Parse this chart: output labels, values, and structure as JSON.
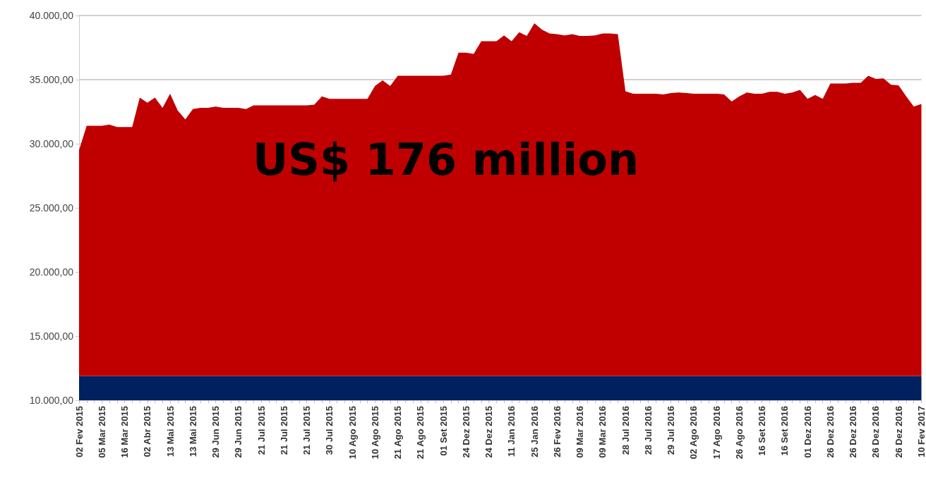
{
  "chart_data": {
    "type": "area",
    "stacked": true,
    "categories": [
      "02 Fev 2015",
      null,
      null,
      "05 Mar 2015",
      null,
      null,
      "16 Mar 2015",
      null,
      null,
      "02 Abr 2015",
      null,
      null,
      "13 Mai 2015",
      null,
      null,
      "13 Mai 2015",
      null,
      null,
      "29 Jun 2015",
      null,
      null,
      "29 Jun 2015",
      null,
      null,
      "21 Jul 2015",
      null,
      null,
      "21 Jul 2015",
      null,
      null,
      "21 Jul 2015",
      null,
      null,
      "30 Jul 2015",
      null,
      null,
      "10 Ago 2015",
      null,
      null,
      "10 Ago 2015",
      null,
      null,
      "21 Ago 2015",
      null,
      null,
      "21 Ago 2015",
      null,
      null,
      "01 Set 2015",
      null,
      null,
      "24 Dez 2015",
      null,
      null,
      "24 Dez 2015",
      null,
      null,
      "11 Jan 2016",
      null,
      null,
      "25 Jan 2016",
      null,
      null,
      "26 Fev 2016",
      null,
      null,
      "09 Mar 2016",
      null,
      null,
      "09 Mar 2016",
      null,
      null,
      "28 Jul 2016",
      null,
      null,
      "28 Jul 2016",
      null,
      null,
      "29 Jul 2016",
      null,
      null,
      "02 Ago 2016",
      null,
      null,
      "17 Ago 2016",
      null,
      null,
      "26 Ago 2016",
      null,
      null,
      "16 Set 2016",
      null,
      null,
      "16 Set 2016",
      null,
      null,
      "01 Dez 2016",
      null,
      null,
      "26 Dez 2016",
      null,
      null,
      "26 Dez 2016",
      null,
      null,
      "26 Dez 2016",
      null,
      null,
      "26 Dez 2016",
      null,
      null,
      "10 Fev 2017"
    ],
    "series": [
      {
        "color": "#002060",
        "values": [
          11900,
          11900,
          11900,
          11900,
          11900,
          11900,
          11900,
          11900,
          11900,
          11900,
          11900,
          11900,
          11900,
          11900,
          11900,
          11900,
          11900,
          11900,
          11900,
          11900,
          11900,
          11900,
          11900,
          11900,
          11900,
          11900,
          11900,
          11900,
          11900,
          11900,
          11900,
          11900,
          11900,
          11900,
          11900,
          11900,
          11900,
          11900,
          11900,
          11900,
          11900,
          11900,
          11900,
          11900,
          11900,
          11900,
          11900,
          11900,
          11900,
          11900,
          11900,
          11900,
          11900,
          11900,
          11900,
          11900,
          11900,
          11900,
          11900,
          11900,
          11900,
          11900,
          11900,
          11900,
          11900,
          11900,
          11900,
          11900,
          11900,
          11900,
          11900,
          11900,
          11900,
          11900,
          11900,
          11900,
          11900,
          11900,
          11900,
          11900,
          11900,
          11900,
          11900,
          11900,
          11900,
          11900,
          11900,
          11900,
          11900,
          11900,
          11900,
          11900,
          11900,
          11900,
          11900,
          11900,
          11900,
          11900,
          11900,
          11900,
          11900,
          11900,
          11900,
          11900,
          11900,
          11900,
          11900,
          11900,
          11900,
          11900,
          11900,
          11900
        ]
      },
      {
        "color": "#c00000",
        "values": [
          17600,
          19500,
          19500,
          19500,
          19600,
          19400,
          19400,
          19400,
          21700,
          21300,
          21700,
          20900,
          22000,
          20700,
          20000,
          20800,
          20900,
          20900,
          21000,
          20900,
          20900,
          20900,
          20800,
          21100,
          21100,
          21100,
          21100,
          21100,
          21100,
          21100,
          21100,
          21150,
          21800,
          21600,
          21600,
          21600,
          21600,
          21600,
          21600,
          22600,
          23050,
          22600,
          23400,
          23400,
          23400,
          23400,
          23400,
          23400,
          23400,
          23500,
          25200,
          25200,
          25100,
          26100,
          26100,
          26100,
          26550,
          26100,
          26800,
          26500,
          27500,
          27000,
          26700,
          26650,
          26550,
          26650,
          26500,
          26500,
          26550,
          26700,
          26700,
          26650,
          22200,
          22000,
          22000,
          22000,
          22000,
          21950,
          22050,
          22100,
          22050,
          22000,
          22000,
          22000,
          22000,
          21950,
          21400,
          21800,
          22100,
          22000,
          22000,
          22150,
          22150,
          22000,
          22100,
          22300,
          21600,
          21900,
          21600,
          22800,
          22800,
          22800,
          22850,
          22850,
          23400,
          23150,
          23200,
          22700,
          22650,
          21800,
          21000,
          21200
        ]
      }
    ],
    "ylim": [
      10000,
      40000
    ],
    "yticks": [
      {
        "value": 10000,
        "label": "10.000,00"
      },
      {
        "value": 15000,
        "label": "15.000,00"
      },
      {
        "value": 20000,
        "label": "20.000,00"
      },
      {
        "value": 25000,
        "label": "25.000,00"
      },
      {
        "value": 30000,
        "label": "30.000,00"
      },
      {
        "value": 35000,
        "label": "35.000,00"
      },
      {
        "value": 40000,
        "label": "40.000,00"
      }
    ],
    "grid": "y",
    "annotations": [
      "US$ 176 million"
    ]
  }
}
